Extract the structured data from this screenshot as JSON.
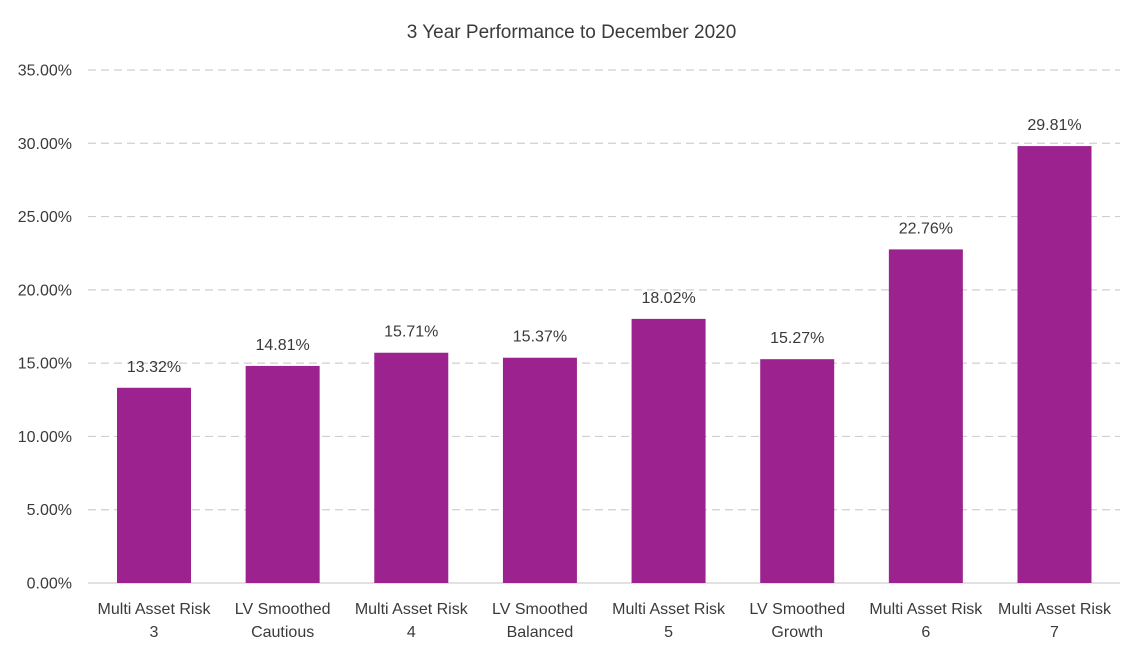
{
  "chart_data": {
    "type": "bar",
    "title": "3 Year Performance to December 2020",
    "xlabel": "",
    "ylabel": "",
    "categories": [
      [
        "Multi Asset Risk",
        "3"
      ],
      [
        "LV Smoothed",
        "Cautious"
      ],
      [
        "Multi Asset Risk",
        "4"
      ],
      [
        "LV Smoothed",
        "Balanced"
      ],
      [
        "Multi Asset Risk",
        "5"
      ],
      [
        "LV Smoothed",
        "Growth"
      ],
      [
        "Multi Asset Risk",
        "6"
      ],
      [
        "Multi Asset Risk",
        "7"
      ]
    ],
    "values": [
      13.32,
      14.81,
      15.71,
      15.37,
      18.02,
      15.27,
      22.76,
      29.81
    ],
    "data_labels": [
      "13.32%",
      "14.81%",
      "15.71%",
      "15.37%",
      "18.02%",
      "15.27%",
      "22.76%",
      "29.81%"
    ],
    "ylim": [
      0,
      35
    ],
    "yticks": [
      0,
      5,
      10,
      15,
      20,
      25,
      30,
      35
    ],
    "ytick_labels": [
      "0.00%",
      "5.00%",
      "10.00%",
      "15.00%",
      "20.00%",
      "25.00%",
      "30.00%",
      "35.00%"
    ],
    "grid": true,
    "legend": "none",
    "colors": {
      "bar": "#9b228f",
      "grid": "#cfcfcf",
      "text": "#3a3a3a"
    }
  }
}
